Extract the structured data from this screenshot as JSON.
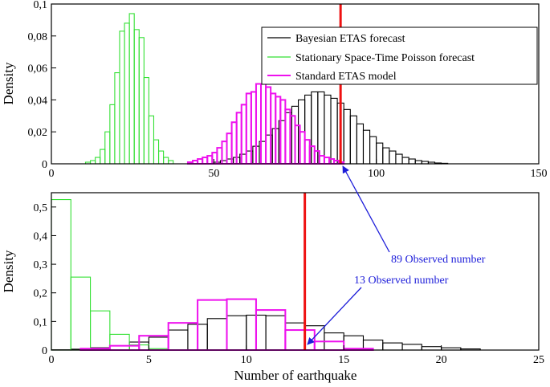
{
  "chart_data": [
    {
      "panel": "top",
      "type": "histogram",
      "title": "",
      "xlabel": "",
      "ylabel": "Density",
      "xlim": [
        0,
        150
      ],
      "ylim": [
        0,
        0.1
      ],
      "xticks": [
        0,
        50,
        100,
        150
      ],
      "xtick_labels": [
        "0",
        "50",
        "100",
        "150"
      ],
      "yticks": [
        0,
        0.02,
        0.04,
        0.06,
        0.08,
        0.1
      ],
      "ytick_labels": [
        "0",
        "0,02",
        "0,04",
        "0,06",
        "0,08",
        "0,1"
      ],
      "legend": {
        "position": "top-right",
        "entries": [
          "Bayesian ETAS forecast",
          "Stationary Space-Time Poisson forecast",
          "Standard ETAS model"
        ]
      },
      "series": [
        {
          "name": "Bayesian ETAS forecast",
          "color": "#000000",
          "bin_width": 2,
          "bin_starts": [
            50,
            52,
            54,
            56,
            58,
            60,
            62,
            64,
            66,
            68,
            70,
            72,
            74,
            76,
            78,
            80,
            82,
            84,
            86,
            88,
            90,
            92,
            94,
            96,
            98,
            100,
            102,
            104,
            106,
            108,
            110,
            112,
            114,
            116,
            118,
            120
          ],
          "values": [
            0.001,
            0.002,
            0.003,
            0.004,
            0.006,
            0.008,
            0.011,
            0.014,
            0.018,
            0.022,
            0.027,
            0.032,
            0.036,
            0.04,
            0.043,
            0.045,
            0.045,
            0.043,
            0.041,
            0.038,
            0.034,
            0.03,
            0.025,
            0.021,
            0.017,
            0.013,
            0.01,
            0.008,
            0.006,
            0.004,
            0.003,
            0.002,
            0.0015,
            0.001,
            0.0005,
            0.0003
          ]
        },
        {
          "name": "Stationary Space-Time Poisson forecast",
          "color": "#33e033",
          "bin_width": 1.5,
          "bin_starts": [
            10.5,
            12,
            13.5,
            15,
            16.5,
            18,
            19.5,
            21,
            22.5,
            24,
            25.5,
            27,
            28.5,
            30,
            31.5,
            33,
            34.5,
            36
          ],
          "values": [
            0.001,
            0.002,
            0.004,
            0.009,
            0.02,
            0.037,
            0.057,
            0.083,
            0.088,
            0.094,
            0.084,
            0.079,
            0.054,
            0.03,
            0.015,
            0.008,
            0.004,
            0.002
          ]
        },
        {
          "name": "Standard ETAS model",
          "color": "#ee11ee",
          "bin_width": 1.5,
          "bin_starts": [
            42,
            43.5,
            45,
            46.5,
            48,
            49.5,
            51,
            52.5,
            54,
            55.5,
            57,
            58.5,
            60,
            61.5,
            63,
            64.5,
            66,
            67.5,
            69,
            70.5,
            72,
            73.5,
            75,
            76.5,
            78,
            79.5,
            81,
            82.5,
            84,
            85.5,
            87,
            88.5
          ],
          "values": [
            0.001,
            0.002,
            0.003,
            0.004,
            0.005,
            0.007,
            0.01,
            0.014,
            0.019,
            0.026,
            0.032,
            0.037,
            0.044,
            0.045,
            0.05,
            0.05,
            0.048,
            0.044,
            0.042,
            0.04,
            0.034,
            0.03,
            0.024,
            0.02,
            0.015,
            0.011,
            0.008,
            0.005,
            0.004,
            0.003,
            0.002,
            0.001
          ]
        }
      ],
      "observed": {
        "value": 89,
        "label": "89 Observed number",
        "color": "#ee1111"
      }
    },
    {
      "panel": "bottom",
      "type": "histogram",
      "title": "",
      "xlabel": "Number of earthquake",
      "ylabel": "Density",
      "xlim": [
        0,
        25
      ],
      "ylim": [
        0,
        0.55
      ],
      "xticks": [
        0,
        5,
        10,
        15,
        20,
        25
      ],
      "xtick_labels": [
        "0",
        "5",
        "10",
        "15",
        "20",
        "25"
      ],
      "yticks": [
        0,
        0.1,
        0.2,
        0.3,
        0.4,
        0.5
      ],
      "ytick_labels": [
        "0",
        "0,1",
        "0,2",
        "0,3",
        "0,4",
        "0,5"
      ],
      "series": [
        {
          "name": "Bayesian ETAS forecast",
          "color": "#000000",
          "bin_width": 1,
          "bin_starts": [
            0,
            1,
            2,
            3,
            4,
            5,
            6,
            7,
            8,
            9,
            10,
            11,
            12,
            13,
            14,
            15,
            16,
            17,
            18,
            19,
            20,
            21
          ],
          "values": [
            0.001,
            0.003,
            0.008,
            0.015,
            0.028,
            0.045,
            0.07,
            0.09,
            0.11,
            0.12,
            0.122,
            0.12,
            0.095,
            0.085,
            0.06,
            0.05,
            0.035,
            0.025,
            0.02,
            0.012,
            0.008,
            0.004
          ]
        },
        {
          "name": "Stationary Space-Time Poisson forecast",
          "color": "#33e033",
          "bin_width": 1,
          "bin_starts": [
            0,
            1,
            2,
            3,
            4,
            5
          ],
          "values": [
            0.526,
            0.255,
            0.137,
            0.055,
            0.018,
            0.005
          ]
        },
        {
          "name": "Standard ETAS model",
          "color": "#ee11ee",
          "bin_width": 1.5,
          "bin_starts": [
            1.5,
            3,
            4.5,
            6,
            7.5,
            9,
            10.5,
            12,
            13.5,
            15
          ],
          "values": [
            0.005,
            0.015,
            0.05,
            0.095,
            0.175,
            0.178,
            0.14,
            0.07,
            0.03,
            0.005
          ]
        }
      ],
      "observed": {
        "value": 13,
        "label": "13 Observed number",
        "color": "#ee1111"
      }
    }
  ]
}
